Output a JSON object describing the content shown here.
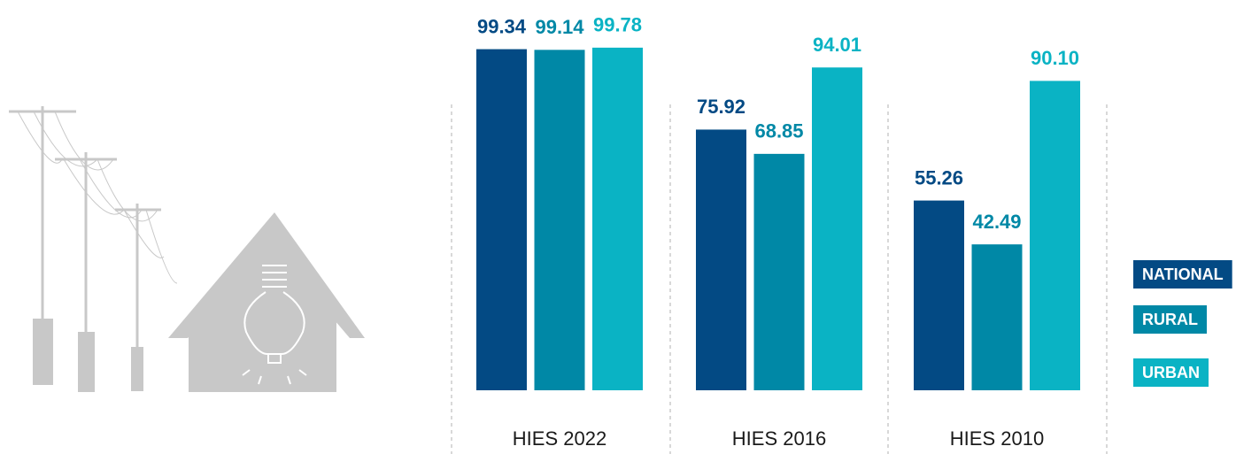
{
  "chart_data": {
    "type": "bar",
    "categories": [
      "HIES 2022",
      "HIES 2016",
      "HIES 2010"
    ],
    "series": [
      {
        "name": "NATIONAL",
        "color": "#034a84",
        "values": [
          99.34,
          75.92,
          55.26
        ],
        "value_labels": [
          "99.34",
          "75.92",
          "55.26"
        ]
      },
      {
        "name": "RURAL",
        "color": "#0088a6",
        "values": [
          99.14,
          68.85,
          42.49
        ],
        "value_labels": [
          "99.14",
          "68.85",
          "42.49"
        ]
      },
      {
        "name": "URBAN",
        "color": "#0ab3c4",
        "values": [
          99.78,
          94.01,
          90.1
        ],
        "value_labels": [
          "99.78",
          "94.01",
          "90.10"
        ]
      }
    ],
    "ylim": [
      0,
      100
    ]
  }
}
